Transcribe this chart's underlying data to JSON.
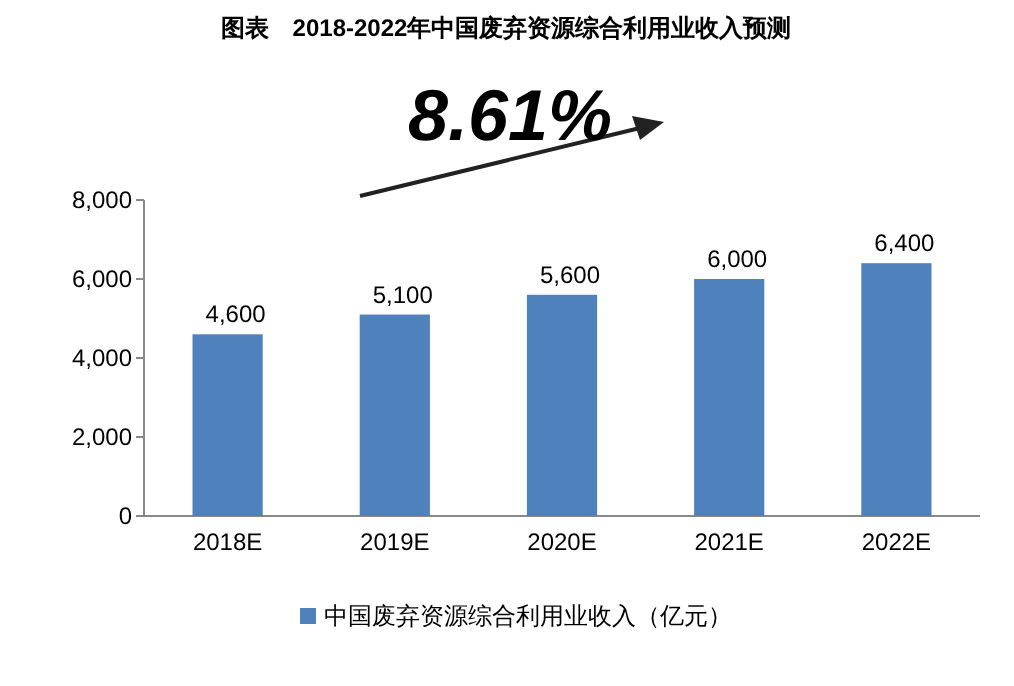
{
  "chart_data": {
    "type": "bar",
    "title": "图表　2018-2022年中国废弃资源综合利用业收入预测",
    "categories": [
      "2018E",
      "2019E",
      "2020E",
      "2021E",
      "2022E"
    ],
    "series": [
      {
        "name": "中国废弃资源综合利用业收入（亿元）",
        "color": "#4f81bd",
        "values": [
          4600,
          5100,
          5600,
          6000,
          6400
        ],
        "value_labels": [
          "4,600",
          "5,100",
          "5,600",
          "6,000",
          "6,400"
        ]
      }
    ],
    "ylim": [
      0,
      8000
    ],
    "yticks": [
      0,
      {
        "value": 2000,
        "label": "2,000"
      },
      {
        "value": 4000,
        "label": "4,000"
      },
      {
        "value": 6000,
        "label": "6,000"
      },
      {
        "value": 8000,
        "label": "8,000"
      }
    ],
    "legend": "bottom",
    "annotations": [
      "8.61%"
    ]
  }
}
